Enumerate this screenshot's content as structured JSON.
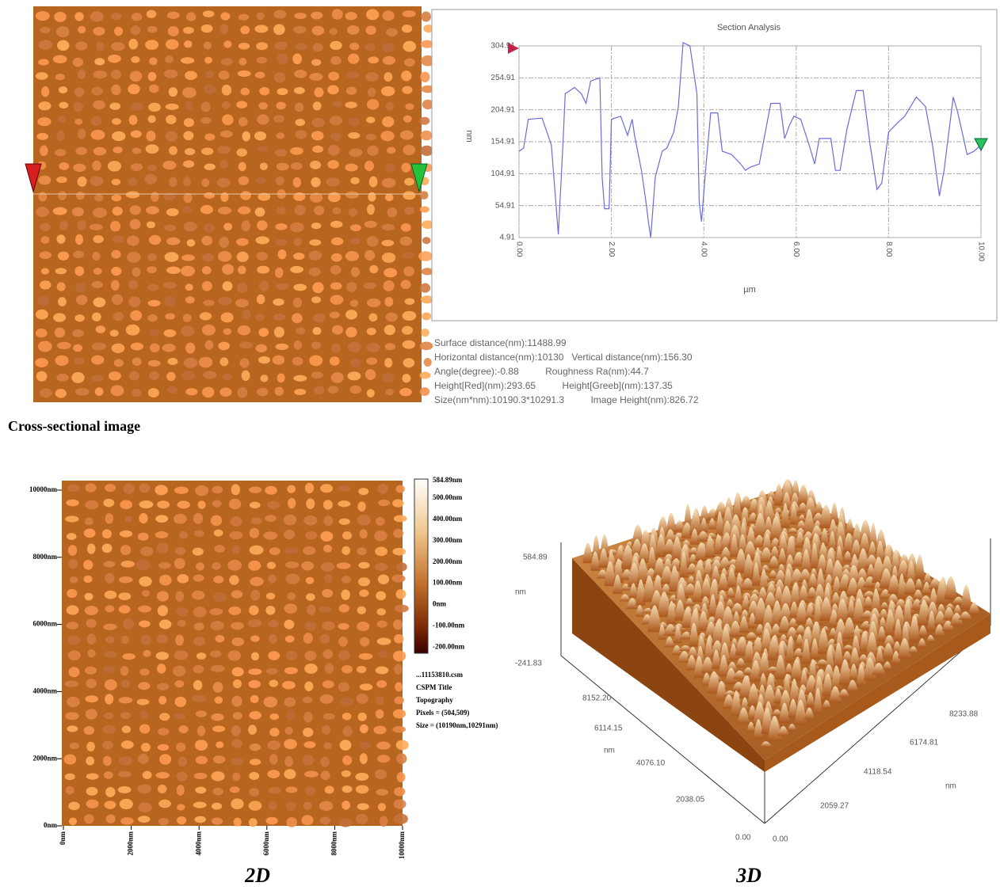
{
  "cross_section": {
    "caption": "Cross-sectional image",
    "stats": [
      "Surface distance(nm):11488.99",
      "Horizontal distance(nm):10130   Vertical distance(nm):156.30",
      "Angle(degree):-0.88          Roughness Ra(nm):44.7",
      "Height[Red](nm):293.65          Height[Greeb](nm):137.35",
      "Size(nm*nm):10190.3*10291.3          Image Height(nm):826.72"
    ]
  },
  "chart_data": {
    "type": "line",
    "title": "Section Analysis",
    "x_label": "µm",
    "y_label": "nm",
    "x": [
      0.0,
      0.1,
      0.2,
      0.5,
      0.7,
      0.85,
      0.95,
      1.0,
      1.2,
      1.35,
      1.45,
      1.55,
      1.75,
      1.8,
      1.85,
      1.95,
      2.0,
      2.2,
      2.35,
      2.45,
      2.5,
      2.65,
      2.75,
      2.8,
      2.85,
      2.95,
      3.1,
      3.2,
      3.35,
      3.45,
      3.55,
      3.7,
      3.85,
      3.9,
      3.95,
      4.05,
      4.15,
      4.3,
      4.4,
      4.6,
      4.8,
      4.9,
      5.0,
      5.2,
      5.45,
      5.65,
      5.75,
      5.85,
      5.95,
      6.1,
      6.3,
      6.4,
      6.5,
      6.75,
      6.85,
      6.95,
      7.1,
      7.3,
      7.45,
      7.6,
      7.75,
      7.85,
      8.0,
      8.2,
      8.35,
      8.6,
      8.8,
      8.95,
      9.1,
      9.2,
      9.4,
      9.5,
      9.7,
      9.85,
      10.0
    ],
    "values": [
      140,
      145,
      190,
      192,
      150,
      10,
      150,
      230,
      240,
      230,
      215,
      250,
      255,
      100,
      50,
      50,
      190,
      195,
      165,
      190,
      165,
      110,
      60,
      30,
      5,
      100,
      140,
      145,
      170,
      210,
      310,
      305,
      230,
      60,
      30,
      120,
      200,
      200,
      140,
      135,
      120,
      110,
      115,
      120,
      215,
      215,
      160,
      180,
      195,
      190,
      145,
      120,
      160,
      160,
      110,
      110,
      175,
      235,
      235,
      150,
      80,
      90,
      170,
      185,
      195,
      225,
      210,
      150,
      70,
      110,
      225,
      200,
      135,
      140,
      150
    ],
    "color": "#6b6bdc",
    "grid": true,
    "xlim": [
      0,
      10
    ],
    "xticks": [
      {
        "value": 0,
        "label": "0.00"
      },
      {
        "value": 2,
        "label": "2.00"
      },
      {
        "value": 4,
        "label": "4.00"
      },
      {
        "value": 6,
        "label": "6.00"
      },
      {
        "value": 8,
        "label": "8.00"
      },
      {
        "value": 10,
        "label": "10.00"
      }
    ],
    "ylim": [
      4.91,
      304.91
    ],
    "yticks": [
      4.91,
      54.91,
      104.91,
      154.91,
      204.91,
      254.91,
      304.91
    ]
  },
  "image_2d": {
    "caption": "2D",
    "yticks": [
      "10000nm",
      "8000nm",
      "6000nm",
      "4000nm",
      "2000nm",
      "0nm"
    ],
    "xticks": [
      "0nm",
      "2000nm",
      "4000nm",
      "6000nm",
      "8000nm",
      "10000nm"
    ],
    "colorbar": [
      "584.89nm",
      "500.00nm",
      "400.00nm",
      "300.00nm",
      "200.00nm",
      "100.00nm",
      "0nm",
      "-100.00nm",
      "-200.00nm"
    ],
    "info": [
      "...11153810.csm",
      "CSPM Title",
      "Topography",
      "Pixels = (504,509)",
      "Size = (10190nm,10291nm)"
    ]
  },
  "image_3d": {
    "caption": "3D",
    "z_max": "584.89",
    "z_unit": "nm",
    "z_min": "-241.83",
    "left_axis": [
      "8152.20",
      "6114.15",
      "4076.10",
      "2038.05",
      "0.00"
    ],
    "left_unit": "nm",
    "right_axis": [
      "0.00",
      "2059.27",
      "4118.54",
      "6174.81",
      "8233.88"
    ],
    "right_unit": "nm"
  }
}
